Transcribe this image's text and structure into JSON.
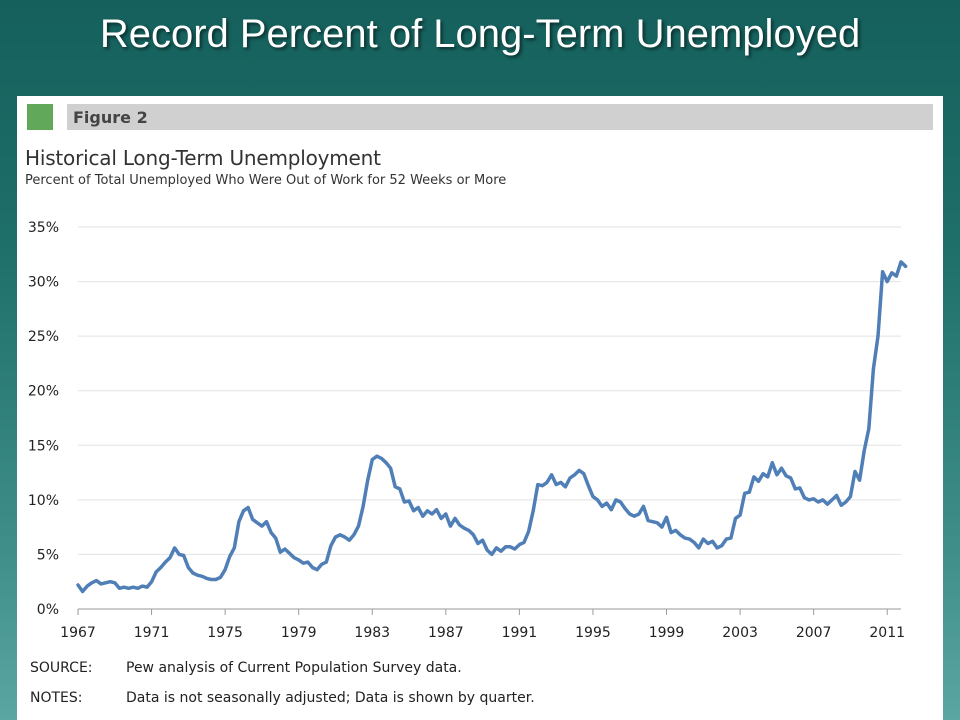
{
  "slide": {
    "title": "Record Percent of Long-Term Unemployed"
  },
  "figure": {
    "label": "Figure 2",
    "title": "Historical Long-Term Unemployment",
    "subtitle": "Percent of Total Unemployed Who Were Out of Work for 52 Weeks or More",
    "accent_color": "#62a85a",
    "bar_color": "#d0d0d0",
    "source_key": "SOURCE:",
    "source_text": "Pew analysis of Current Population Survey data.",
    "notes_key": "NOTES:",
    "notes_text": "Data is not seasonally adjusted; Data is shown by quarter."
  },
  "chart_data": {
    "type": "line",
    "title": "Historical Long-Term Unemployment",
    "subtitle": "Percent of Total Unemployed Who Were Out of Work for 52 Weeks or More",
    "xlabel": "",
    "ylabel": "",
    "xlim": [
      1967,
      2011.75
    ],
    "ylim": [
      0,
      35
    ],
    "x_ticks": [
      1967,
      1971,
      1975,
      1979,
      1983,
      1987,
      1991,
      1995,
      1999,
      2003,
      2007,
      2011
    ],
    "y_ticks": [
      0,
      5,
      10,
      15,
      20,
      25,
      30,
      35
    ],
    "y_tick_labels": [
      "0%",
      "5%",
      "10%",
      "15%",
      "20%",
      "25%",
      "30%",
      "35%"
    ],
    "grid": "horizontal",
    "line_color": "#4f7fb6",
    "series": [
      {
        "name": "",
        "points": [
          [
            1967.0,
            2.2
          ],
          [
            1967.25,
            1.6
          ],
          [
            1967.5,
            2.1
          ],
          [
            1967.75,
            2.4
          ],
          [
            1968.0,
            2.6
          ],
          [
            1968.25,
            2.3
          ],
          [
            1968.5,
            2.4
          ],
          [
            1968.75,
            2.5
          ],
          [
            1969.0,
            2.4
          ],
          [
            1969.25,
            1.9
          ],
          [
            1969.5,
            2.0
          ],
          [
            1969.75,
            1.9
          ],
          [
            1970.0,
            2.0
          ],
          [
            1970.25,
            1.9
          ],
          [
            1970.5,
            2.1
          ],
          [
            1970.75,
            2.0
          ],
          [
            1971.0,
            2.5
          ],
          [
            1971.25,
            3.4
          ],
          [
            1971.5,
            3.8
          ],
          [
            1971.75,
            4.3
          ],
          [
            1972.0,
            4.7
          ],
          [
            1972.25,
            5.6
          ],
          [
            1972.5,
            5.0
          ],
          [
            1972.75,
            4.9
          ],
          [
            1973.0,
            3.8
          ],
          [
            1973.25,
            3.3
          ],
          [
            1973.5,
            3.1
          ],
          [
            1973.75,
            3.0
          ],
          [
            1974.0,
            2.8
          ],
          [
            1974.25,
            2.7
          ],
          [
            1974.5,
            2.7
          ],
          [
            1974.75,
            2.9
          ],
          [
            1975.0,
            3.6
          ],
          [
            1975.25,
            4.8
          ],
          [
            1975.5,
            5.6
          ],
          [
            1975.75,
            8.0
          ],
          [
            1976.0,
            9.0
          ],
          [
            1976.25,
            9.3
          ],
          [
            1976.5,
            8.2
          ],
          [
            1976.75,
            7.9
          ],
          [
            1977.0,
            7.6
          ],
          [
            1977.25,
            8.0
          ],
          [
            1977.5,
            7.0
          ],
          [
            1977.75,
            6.5
          ],
          [
            1978.0,
            5.2
          ],
          [
            1978.25,
            5.5
          ],
          [
            1978.5,
            5.1
          ],
          [
            1978.75,
            4.7
          ],
          [
            1979.0,
            4.5
          ],
          [
            1979.25,
            4.2
          ],
          [
            1979.5,
            4.3
          ],
          [
            1979.75,
            3.8
          ],
          [
            1980.0,
            3.6
          ],
          [
            1980.25,
            4.1
          ],
          [
            1980.5,
            4.3
          ],
          [
            1980.75,
            5.8
          ],
          [
            1981.0,
            6.6
          ],
          [
            1981.25,
            6.8
          ],
          [
            1981.5,
            6.6
          ],
          [
            1981.75,
            6.3
          ],
          [
            1982.0,
            6.8
          ],
          [
            1982.25,
            7.6
          ],
          [
            1982.5,
            9.4
          ],
          [
            1982.75,
            11.8
          ],
          [
            1983.0,
            13.7
          ],
          [
            1983.25,
            14.0
          ],
          [
            1983.5,
            13.8
          ],
          [
            1983.75,
            13.4
          ],
          [
            1984.0,
            12.9
          ],
          [
            1984.25,
            11.2
          ],
          [
            1984.5,
            11.0
          ],
          [
            1984.75,
            9.8
          ],
          [
            1985.0,
            9.9
          ],
          [
            1985.25,
            9.0
          ],
          [
            1985.5,
            9.3
          ],
          [
            1985.75,
            8.5
          ],
          [
            1986.0,
            9.0
          ],
          [
            1986.25,
            8.7
          ],
          [
            1986.5,
            9.1
          ],
          [
            1986.75,
            8.3
          ],
          [
            1987.0,
            8.7
          ],
          [
            1987.25,
            7.6
          ],
          [
            1987.5,
            8.3
          ],
          [
            1987.75,
            7.7
          ],
          [
            1988.0,
            7.4
          ],
          [
            1988.25,
            7.2
          ],
          [
            1988.5,
            6.8
          ],
          [
            1988.75,
            6.0
          ],
          [
            1989.0,
            6.3
          ],
          [
            1989.25,
            5.4
          ],
          [
            1989.5,
            5.0
          ],
          [
            1989.75,
            5.6
          ],
          [
            1990.0,
            5.3
          ],
          [
            1990.25,
            5.7
          ],
          [
            1990.5,
            5.7
          ],
          [
            1990.75,
            5.5
          ],
          [
            1991.0,
            5.9
          ],
          [
            1991.25,
            6.1
          ],
          [
            1991.5,
            7.1
          ],
          [
            1991.75,
            9.0
          ],
          [
            1992.0,
            11.4
          ],
          [
            1992.25,
            11.3
          ],
          [
            1992.5,
            11.6
          ],
          [
            1992.75,
            12.3
          ],
          [
            1993.0,
            11.4
          ],
          [
            1993.25,
            11.6
          ],
          [
            1993.5,
            11.2
          ],
          [
            1993.75,
            12.0
          ],
          [
            1994.0,
            12.3
          ],
          [
            1994.25,
            12.7
          ],
          [
            1994.5,
            12.4
          ],
          [
            1994.75,
            11.3
          ],
          [
            1995.0,
            10.3
          ],
          [
            1995.25,
            10.0
          ],
          [
            1995.5,
            9.4
          ],
          [
            1995.75,
            9.7
          ],
          [
            1996.0,
            9.1
          ],
          [
            1996.25,
            10.0
          ],
          [
            1996.5,
            9.8
          ],
          [
            1996.75,
            9.2
          ],
          [
            1997.0,
            8.7
          ],
          [
            1997.25,
            8.5
          ],
          [
            1997.5,
            8.7
          ],
          [
            1997.75,
            9.4
          ],
          [
            1998.0,
            8.1
          ],
          [
            1998.25,
            8.0
          ],
          [
            1998.5,
            7.9
          ],
          [
            1998.75,
            7.5
          ],
          [
            1999.0,
            8.4
          ],
          [
            1999.25,
            7.0
          ],
          [
            1999.5,
            7.2
          ],
          [
            1999.75,
            6.8
          ],
          [
            2000.0,
            6.5
          ],
          [
            2000.25,
            6.4
          ],
          [
            2000.5,
            6.1
          ],
          [
            2000.75,
            5.6
          ],
          [
            2001.0,
            6.4
          ],
          [
            2001.25,
            6.0
          ],
          [
            2001.5,
            6.2
          ],
          [
            2001.75,
            5.6
          ],
          [
            2002.0,
            5.8
          ],
          [
            2002.25,
            6.4
          ],
          [
            2002.5,
            6.5
          ],
          [
            2002.75,
            8.3
          ],
          [
            2003.0,
            8.6
          ],
          [
            2003.25,
            10.6
          ],
          [
            2003.5,
            10.7
          ],
          [
            2003.75,
            12.1
          ],
          [
            2004.0,
            11.7
          ],
          [
            2004.25,
            12.4
          ],
          [
            2004.5,
            12.1
          ],
          [
            2004.75,
            13.4
          ],
          [
            2005.0,
            12.3
          ],
          [
            2005.25,
            12.9
          ],
          [
            2005.5,
            12.2
          ],
          [
            2005.75,
            12.0
          ],
          [
            2006.0,
            11.0
          ],
          [
            2006.25,
            11.1
          ],
          [
            2006.5,
            10.2
          ],
          [
            2006.75,
            10.0
          ],
          [
            2007.0,
            10.1
          ],
          [
            2007.25,
            9.8
          ],
          [
            2007.5,
            10.0
          ],
          [
            2007.75,
            9.6
          ],
          [
            2008.0,
            10.0
          ],
          [
            2008.25,
            10.4
          ],
          [
            2008.5,
            9.5
          ],
          [
            2008.75,
            9.8
          ],
          [
            2009.0,
            10.3
          ],
          [
            2009.25,
            12.6
          ],
          [
            2009.5,
            11.8
          ],
          [
            2009.75,
            14.5
          ],
          [
            2010.0,
            16.5
          ],
          [
            2010.25,
            22.0
          ],
          [
            2010.5,
            25.0
          ],
          [
            2010.75,
            30.9
          ],
          [
            2011.0,
            30.0
          ],
          [
            2011.25,
            30.8
          ],
          [
            2011.5,
            30.5
          ],
          [
            2011.75,
            31.8
          ],
          [
            2012.0,
            31.4
          ]
        ]
      }
    ]
  }
}
